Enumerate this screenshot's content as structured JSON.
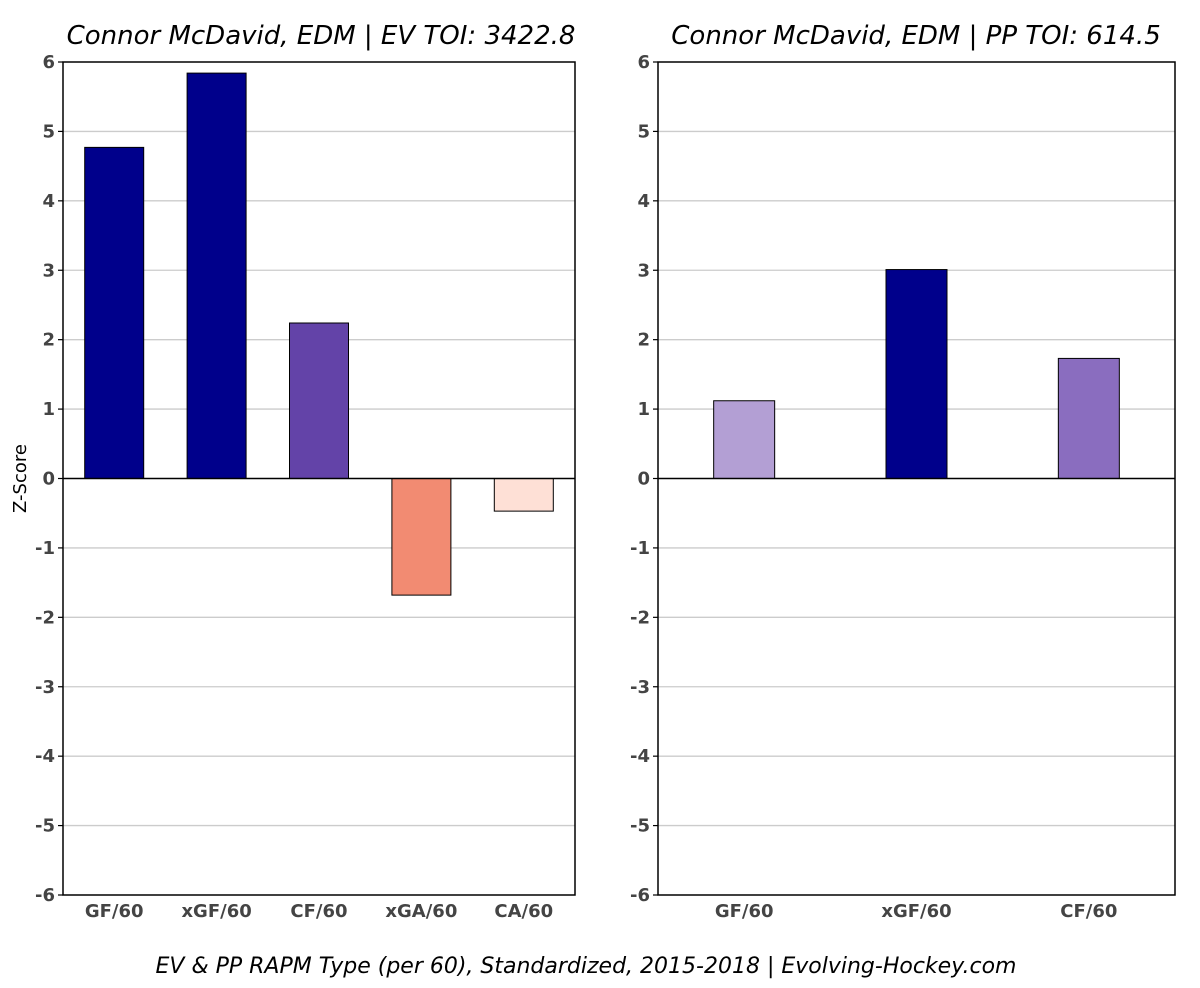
{
  "caption": "EV & PP RAPM Type (per 60), Standardized, 2015-2018    |    Evolving-Hockey.com",
  "chart_data": [
    {
      "type": "bar",
      "title": "Connor McDavid, EDM  |  EV TOI: 3422.8",
      "ylabel": "Z-Score",
      "ylim": [
        -6,
        6
      ],
      "yticks": [
        -6,
        -5,
        -4,
        -3,
        -2,
        -1,
        0,
        1,
        2,
        3,
        4,
        5,
        6
      ],
      "grid": true,
      "categories": [
        "GF/60",
        "xGF/60",
        "CF/60",
        "xGA/60",
        "CA/60"
      ],
      "values": [
        4.77,
        5.84,
        2.24,
        -1.68,
        -0.47
      ],
      "colors": [
        "#00008b",
        "#00008b",
        "#6343a8",
        "#f28b72",
        "#fee0d6"
      ]
    },
    {
      "type": "bar",
      "title": "Connor McDavid, EDM  |  PP TOI: 614.5",
      "ylabel": "",
      "ylim": [
        -6,
        6
      ],
      "yticks": [
        -6,
        -5,
        -4,
        -3,
        -2,
        -1,
        0,
        1,
        2,
        3,
        4,
        5,
        6
      ],
      "grid": true,
      "categories": [
        "GF/60",
        "xGF/60",
        "CF/60"
      ],
      "values": [
        1.12,
        3.01,
        1.73
      ],
      "colors": [
        "#b39fd4",
        "#00008b",
        "#8a6dbf"
      ]
    }
  ]
}
